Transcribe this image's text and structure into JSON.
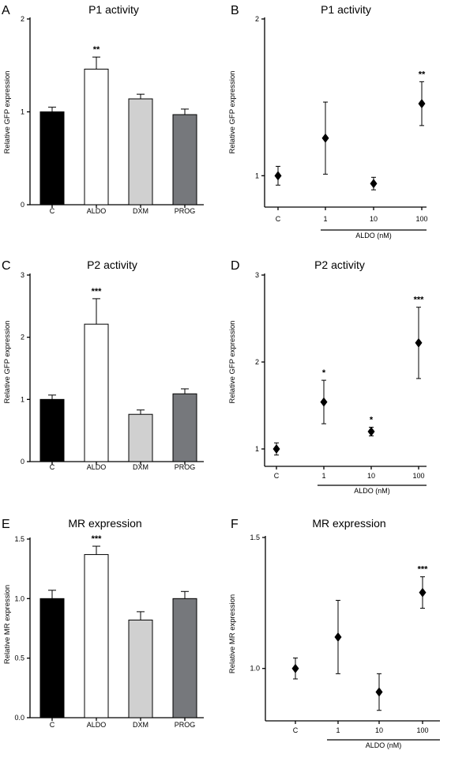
{
  "chart_data": [
    {
      "id": "A",
      "letter": "A",
      "type": "bar",
      "title": "P1 activity",
      "ylabel": "Relative GFP expression",
      "ylim": [
        0,
        2
      ],
      "yticks": [
        0,
        1,
        2
      ],
      "ytick_labels": [
        "0",
        "1",
        "2"
      ],
      "categories": [
        "C",
        "ALDO",
        "DXM",
        "PROG"
      ],
      "values": [
        1.0,
        1.46,
        1.14,
        0.97
      ],
      "errors": [
        0.05,
        0.13,
        0.05,
        0.06
      ],
      "significance": [
        "",
        "**",
        "",
        ""
      ],
      "bar_colors": [
        "#000000",
        "#ffffff",
        "#d0d0d0",
        "#76787c"
      ]
    },
    {
      "id": "B",
      "letter": "B",
      "type": "scatter",
      "title": "P1 activity",
      "ylabel": "Relative GFP expression",
      "ylim": [
        0.8,
        2
      ],
      "yticks": [
        1,
        2
      ],
      "ytick_labels": [
        "1",
        "2"
      ],
      "categories": [
        "C",
        "1",
        "10",
        "100"
      ],
      "values": [
        1.0,
        1.24,
        0.95,
        1.46
      ],
      "errors": [
        0.06,
        0.23,
        0.04,
        0.14
      ],
      "significance": [
        "",
        "",
        "",
        "**"
      ],
      "group_label": "ALDO (nM)"
    },
    {
      "id": "C",
      "letter": "C",
      "type": "bar",
      "title": "P2 activity",
      "ylabel": "Relative GFP expression",
      "ylim": [
        0,
        3
      ],
      "yticks": [
        0,
        1,
        2,
        3
      ],
      "ytick_labels": [
        "0",
        "1",
        "2",
        "3"
      ],
      "categories": [
        "C",
        "ALDO",
        "DXM",
        "PROG"
      ],
      "values": [
        1.0,
        2.21,
        0.76,
        1.09
      ],
      "errors": [
        0.07,
        0.41,
        0.07,
        0.08
      ],
      "significance": [
        "",
        "***",
        "",
        ""
      ],
      "bar_colors": [
        "#000000",
        "#ffffff",
        "#d0d0d0",
        "#76787c"
      ]
    },
    {
      "id": "D",
      "letter": "D",
      "type": "scatter",
      "title": "P2 activity",
      "ylabel": "Relative GFP expression",
      "ylim": [
        0.8,
        3
      ],
      "yticks": [
        1,
        2,
        3
      ],
      "ytick_labels": [
        "1",
        "2",
        "3"
      ],
      "categories": [
        "C",
        "1",
        "10",
        "100"
      ],
      "values": [
        1.0,
        1.54,
        1.2,
        2.22
      ],
      "errors": [
        0.07,
        0.25,
        0.05,
        0.41
      ],
      "significance": [
        "",
        "*",
        "*",
        "***"
      ],
      "group_label": "ALDO (nM)"
    },
    {
      "id": "E",
      "letter": "E",
      "type": "bar",
      "title": "MR expression",
      "ylabel": "Relative MR expression",
      "ylim": [
        0,
        1.5
      ],
      "yticks": [
        0,
        0.5,
        1.0,
        1.5
      ],
      "ytick_labels": [
        "0.0",
        "0.5",
        "1.0",
        "1.5"
      ],
      "categories": [
        "C",
        "ALDO",
        "DXM",
        "PROG"
      ],
      "values": [
        1.0,
        1.37,
        0.82,
        1.0
      ],
      "errors": [
        0.07,
        0.07,
        0.07,
        0.06
      ],
      "significance": [
        "",
        "***",
        "",
        ""
      ],
      "bar_colors": [
        "#000000",
        "#ffffff",
        "#d0d0d0",
        "#76787c"
      ]
    },
    {
      "id": "F",
      "letter": "F",
      "type": "scatter",
      "title": "MR expression",
      "ylabel": "Relative MR expression",
      "ylim": [
        0.8,
        1.5
      ],
      "yticks": [
        1.0,
        1.5
      ],
      "ytick_labels": [
        "1.0",
        "1.5"
      ],
      "categories": [
        "C",
        "1",
        "10",
        "100"
      ],
      "values": [
        1.0,
        1.12,
        0.91,
        1.29
      ],
      "errors": [
        0.04,
        0.14,
        0.07,
        0.06
      ],
      "significance": [
        "",
        "",
        "",
        "***"
      ],
      "group_label": "ALDO (nM)"
    }
  ]
}
